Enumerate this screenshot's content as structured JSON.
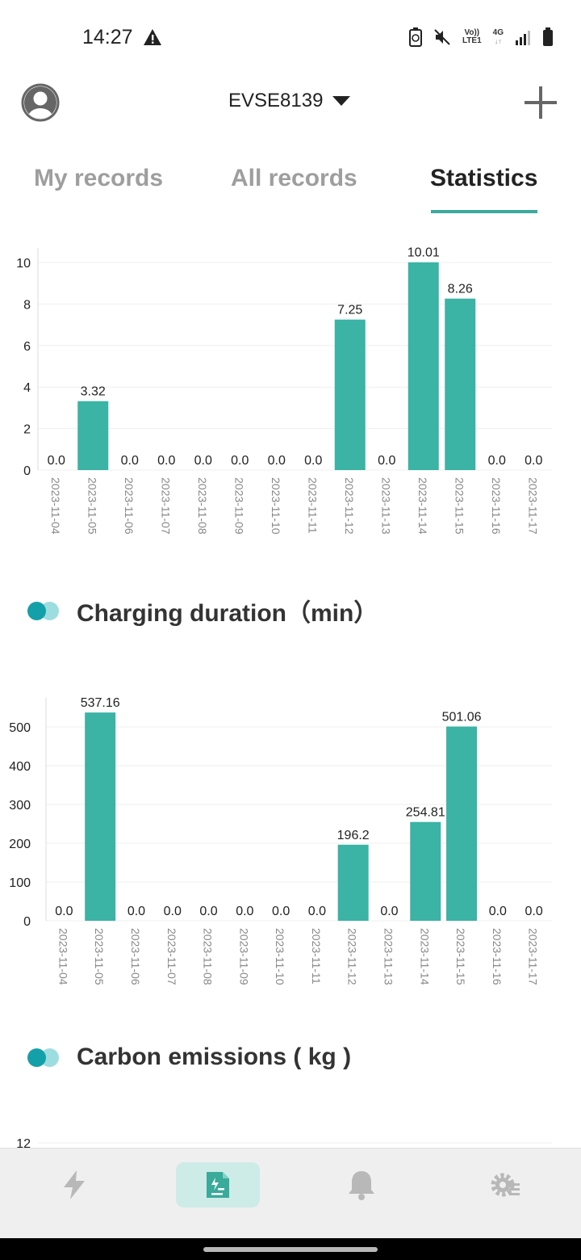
{
  "status_bar": {
    "time": "14:27",
    "network_top": "Vo))",
    "network_bottom": "LTE1",
    "gen": "4G"
  },
  "header": {
    "device_name": "EVSE8139"
  },
  "tabs": [
    {
      "label": "My records",
      "active": false
    },
    {
      "label": "All records",
      "active": false
    },
    {
      "label": "Statistics",
      "active": true
    }
  ],
  "colors": {
    "accent": "#3aaa9b",
    "bar": "#3bb3a5",
    "dot_dark": "#14a0a8",
    "dot_light": "#9ddde0"
  },
  "chart_data": [
    {
      "type": "bar",
      "categories": [
        "2023-11-04",
        "2023-11-05",
        "2023-11-06",
        "2023-11-07",
        "2023-11-08",
        "2023-11-09",
        "2023-11-10",
        "2023-11-11",
        "2023-11-12",
        "2023-11-13",
        "2023-11-14",
        "2023-11-15",
        "2023-11-16",
        "2023-11-17"
      ],
      "values": [
        0,
        3.32,
        0,
        0,
        0,
        0,
        0,
        0,
        7.25,
        0,
        10.01,
        8.26,
        0,
        0
      ],
      "value_labels": [
        "0.0",
        "3.32",
        "0.0",
        "0.0",
        "0.0",
        "0.0",
        "0.0",
        "0.0",
        "7.25",
        "0.0",
        "10.01",
        "8.26",
        "0.0",
        "0.0"
      ],
      "yticks": [
        "0",
        "2",
        "4",
        "6",
        "8",
        "10"
      ],
      "ylim": [
        0,
        10
      ]
    },
    {
      "type": "bar",
      "title": "Charging duration（min）",
      "categories": [
        "2023-11-04",
        "2023-11-05",
        "2023-11-06",
        "2023-11-07",
        "2023-11-08",
        "2023-11-09",
        "2023-11-10",
        "2023-11-11",
        "2023-11-12",
        "2023-11-13",
        "2023-11-14",
        "2023-11-15",
        "2023-11-16",
        "2023-11-17"
      ],
      "values": [
        0,
        537.16,
        0,
        0,
        0,
        0,
        0,
        0,
        196.2,
        0,
        254.81,
        501.06,
        0,
        0
      ],
      "value_labels": [
        "0.0",
        "537.16",
        "0.0",
        "0.0",
        "0.0",
        "0.0",
        "0.0",
        "0.0",
        "196.2",
        "0.0",
        "254.81",
        "501.06",
        "0.0",
        "0.0"
      ],
      "yticks": [
        "0",
        "100",
        "200",
        "300",
        "400",
        "500"
      ],
      "ylim": [
        0,
        500
      ]
    },
    {
      "type": "bar",
      "title": "Carbon emissions ( kg )",
      "yticks_visible": [
        "12"
      ]
    }
  ],
  "sections": {
    "charging_duration": "Charging duration（min）",
    "carbon_emissions": "Carbon emissions ( kg )"
  },
  "bottom_nav": [
    {
      "icon": "lightning-icon",
      "active": false
    },
    {
      "icon": "records-icon",
      "active": true
    },
    {
      "icon": "bell-icon",
      "active": false
    },
    {
      "icon": "settings-icon",
      "active": false
    }
  ]
}
